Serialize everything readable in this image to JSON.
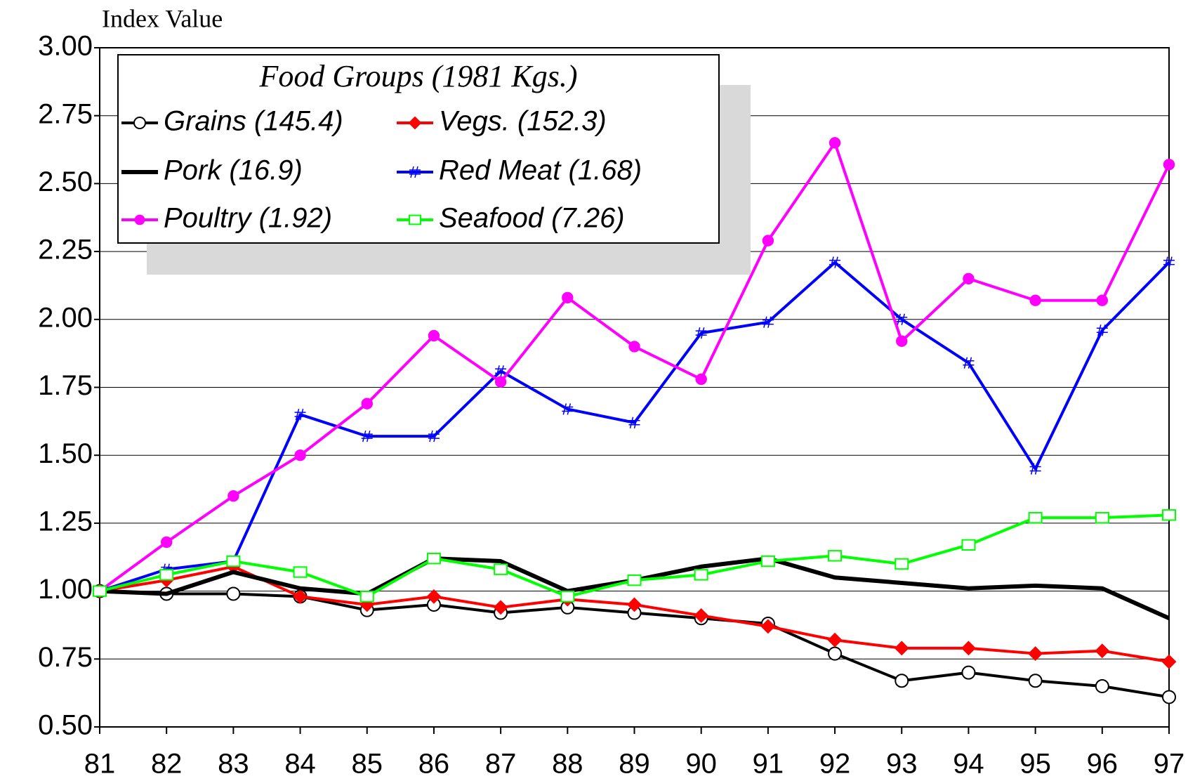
{
  "chart_data": {
    "type": "line",
    "y_label": "Index Value",
    "legend_title": "Food Groups (1981 Kgs.)",
    "categories": [
      "81",
      "82",
      "83",
      "84",
      "85",
      "86",
      "87",
      "88",
      "89",
      "90",
      "91",
      "92",
      "93",
      "94",
      "95",
      "96",
      "97"
    ],
    "ylim": [
      0.5,
      3.0
    ],
    "yticks": [
      {
        "value": 0.5,
        "label": "0.50"
      },
      {
        "value": 0.75,
        "label": "0.75"
      },
      {
        "value": 1.0,
        "label": "1.00"
      },
      {
        "value": 1.25,
        "label": "1.25"
      },
      {
        "value": 1.5,
        "label": "1.50"
      },
      {
        "value": 1.75,
        "label": "1.75"
      },
      {
        "value": 2.0,
        "label": "2.00"
      },
      {
        "value": 2.25,
        "label": "2.25"
      },
      {
        "value": 2.5,
        "label": "2.50"
      },
      {
        "value": 2.75,
        "label": "2.75"
      },
      {
        "value": 3.0,
        "label": "3.00"
      }
    ],
    "grid": true,
    "legend_position": "upper left",
    "series": [
      {
        "name": "Grains (145.4)",
        "color": "#000000",
        "marker": "open-circle",
        "values": [
          1.0,
          0.99,
          0.99,
          0.98,
          0.93,
          0.95,
          0.92,
          0.94,
          0.92,
          0.9,
          0.88,
          0.77,
          0.67,
          0.7,
          0.67,
          0.65,
          0.61
        ]
      },
      {
        "name": "Vegs. (152.3)",
        "color": "#ff0000",
        "marker": "diamond",
        "values": [
          1.0,
          1.04,
          1.09,
          0.98,
          0.95,
          0.98,
          0.94,
          0.97,
          0.95,
          0.91,
          0.87,
          0.82,
          0.79,
          0.79,
          0.77,
          0.78,
          0.74
        ]
      },
      {
        "name": "Pork (16.9)",
        "color": "#000000",
        "marker": "none",
        "values": [
          1.0,
          0.99,
          1.07,
          1.01,
          0.99,
          1.12,
          1.11,
          1.0,
          1.04,
          1.09,
          1.12,
          1.05,
          1.03,
          1.01,
          1.02,
          1.01,
          0.9
        ]
      },
      {
        "name": "Red Meat (1.68)",
        "color": "#0000ff",
        "marker": "hash",
        "values": [
          1.0,
          1.08,
          1.11,
          1.65,
          1.57,
          1.57,
          1.81,
          1.67,
          1.62,
          1.95,
          1.99,
          2.21,
          2.0,
          1.84,
          1.45,
          1.96,
          2.21
        ]
      },
      {
        "name": "Poultry (1.92)",
        "color": "#ff00ff",
        "marker": "filled-circle",
        "values": [
          1.0,
          1.18,
          1.35,
          1.5,
          1.69,
          1.94,
          1.77,
          2.08,
          1.9,
          1.78,
          2.29,
          2.65,
          1.92,
          2.15,
          2.07,
          2.07,
          2.57
        ]
      },
      {
        "name": "Seafood (7.26)",
        "color": "#00ff00",
        "marker": "open-square",
        "values": [
          1.0,
          1.06,
          1.11,
          1.07,
          0.98,
          1.12,
          1.08,
          0.98,
          1.04,
          1.06,
          1.11,
          1.13,
          1.1,
          1.17,
          1.27,
          1.27,
          1.28
        ]
      }
    ]
  }
}
